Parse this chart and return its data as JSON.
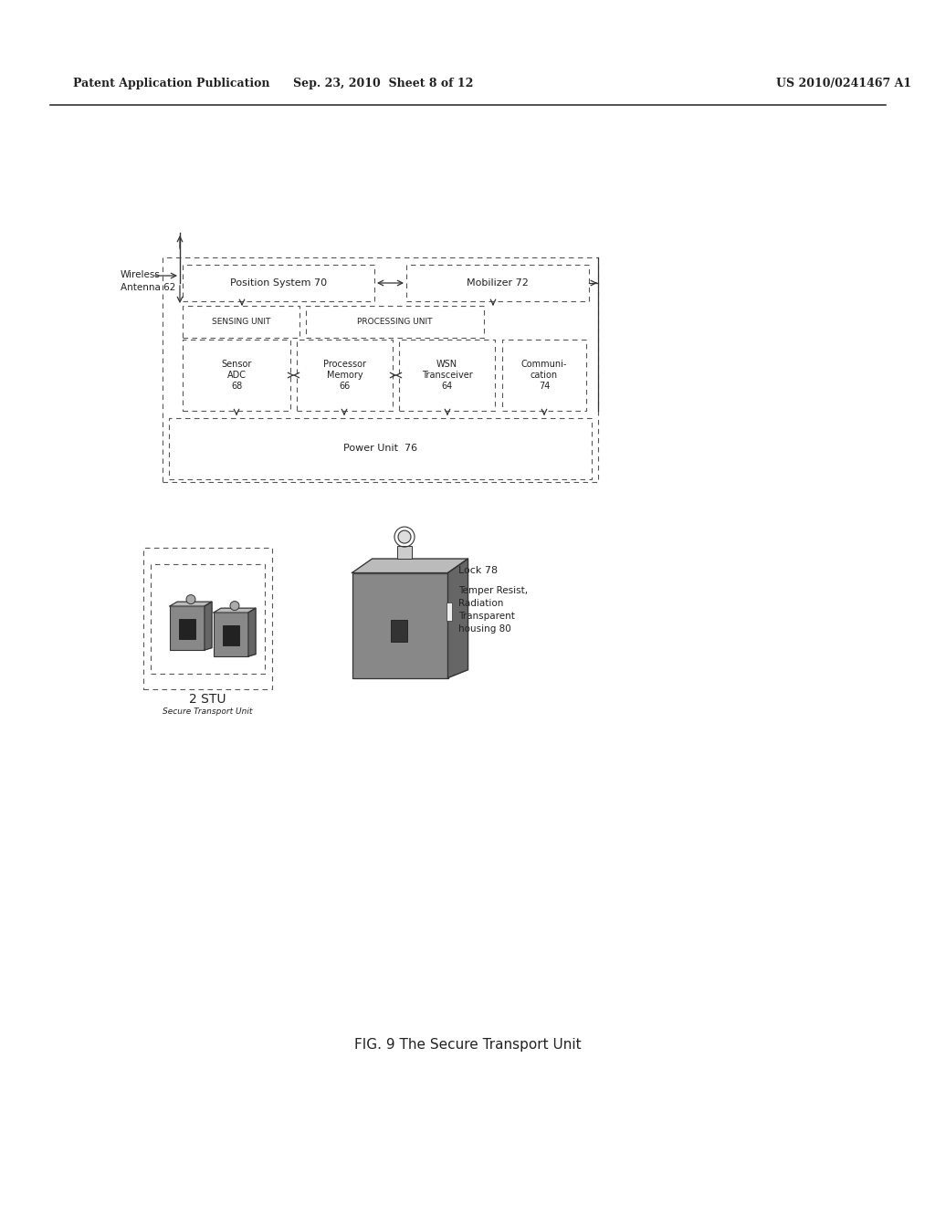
{
  "bg_color": "#ffffff",
  "header_left": "Patent Application Publication",
  "header_mid": "Sep. 23, 2010  Sheet 8 of 12",
  "header_right": "US 2010/0241467 A1",
  "caption": "FIG. 9 The Secure Transport Unit",
  "stu_label": "2 STU",
  "stu_sublabel": "Secure Transport Unit",
  "lock_label": "Lock 78",
  "housing_label": "Temper Resist,\nRadiation\nTransparent\nhousing 80"
}
